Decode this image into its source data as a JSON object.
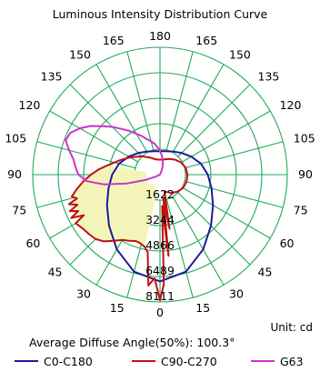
{
  "chart_data": {
    "type": "polar",
    "title": "Luminous Intensity Distribution Curve",
    "unit_label": "Unit: cd",
    "diffuse_angle_label": "Average Diffuse Angle(50%): 100.3°",
    "radial_ticks": [
      1622,
      3244,
      4866,
      6489,
      8111
    ],
    "radial_max": 8111,
    "angle_labels_left": [
      "180",
      "165",
      "150",
      "135",
      "120",
      "105",
      "90",
      "75",
      "60",
      "45",
      "30",
      "15",
      "0"
    ],
    "angle_labels_right": [
      "165",
      "150",
      "135",
      "120",
      "105",
      "90",
      "75",
      "60",
      "45",
      "30",
      "15"
    ],
    "grid": true,
    "legend_position": "bottom",
    "series": [
      {
        "name": "C0-C180",
        "color": "#1a1a9c",
        "points": [
          [
            0,
            6800
          ],
          [
            15,
            6400
          ],
          [
            30,
            5500
          ],
          [
            45,
            4600
          ],
          [
            60,
            3900
          ],
          [
            75,
            3400
          ],
          [
            90,
            3050
          ],
          [
            105,
            2700
          ],
          [
            120,
            2300
          ],
          [
            135,
            1950
          ],
          [
            150,
            1700
          ],
          [
            165,
            1550
          ],
          [
            180,
            1500
          ],
          [
            195,
            1550
          ],
          [
            210,
            1700
          ],
          [
            225,
            1950
          ],
          [
            240,
            2300
          ],
          [
            255,
            2700
          ],
          [
            270,
            3050
          ],
          [
            285,
            3400
          ],
          [
            300,
            3900
          ],
          [
            315,
            4600
          ],
          [
            330,
            5500
          ],
          [
            345,
            6400
          ]
        ]
      },
      {
        "name": "C90-C270",
        "color": "#c01010",
        "points": [
          [
            0,
            8000
          ],
          [
            3,
            6600
          ],
          [
            6,
            7100
          ],
          [
            9,
            5000
          ],
          [
            12,
            4700
          ],
          [
            16,
            4550
          ],
          [
            20,
            4500
          ],
          [
            25,
            4650
          ],
          [
            30,
            4800
          ],
          [
            35,
            5150
          ],
          [
            40,
            5550
          ],
          [
            45,
            5800
          ],
          [
            50,
            5900
          ],
          [
            55,
            6000
          ],
          [
            60,
            6200
          ],
          [
            62,
            5500
          ],
          [
            64,
            6300
          ],
          [
            66,
            5700
          ],
          [
            68,
            6200
          ],
          [
            70,
            5600
          ],
          [
            72,
            6100
          ],
          [
            74,
            5500
          ],
          [
            76,
            5800
          ],
          [
            80,
            5400
          ],
          [
            85,
            4900
          ],
          [
            90,
            4400
          ],
          [
            95,
            3900
          ],
          [
            100,
            3400
          ],
          [
            110,
            2700
          ],
          [
            120,
            2200
          ],
          [
            135,
            1650
          ],
          [
            150,
            1250
          ],
          [
            165,
            1000
          ],
          [
            180,
            950
          ],
          [
            195,
            1000
          ],
          [
            210,
            1150
          ],
          [
            225,
            1350
          ],
          [
            240,
            1550
          ],
          [
            255,
            1700
          ],
          [
            270,
            1750
          ],
          [
            285,
            1750
          ],
          [
            300,
            1700
          ],
          [
            315,
            1550
          ],
          [
            330,
            1350
          ],
          [
            345,
            1100
          ],
          [
            350,
            3500
          ],
          [
            352,
            1500
          ],
          [
            354,
            5200
          ],
          [
            356,
            2000
          ],
          [
            358,
            7000
          ]
        ]
      },
      {
        "name": "G63",
        "color": "#cc33cc",
        "points": [
          [
            0,
            0
          ],
          [
            20,
            0
          ],
          [
            40,
            0
          ],
          [
            55,
            0
          ],
          [
            60,
            0
          ],
          [
            65,
            300
          ],
          [
            70,
            1000
          ],
          [
            75,
            2200
          ],
          [
            80,
            3600
          ],
          [
            85,
            4700
          ],
          [
            90,
            5200
          ],
          [
            95,
            5400
          ],
          [
            100,
            5600
          ],
          [
            105,
            6000
          ],
          [
            110,
            6400
          ],
          [
            115,
            6300
          ],
          [
            120,
            5900
          ],
          [
            125,
            5400
          ],
          [
            130,
            4800
          ],
          [
            135,
            4300
          ],
          [
            140,
            3800
          ],
          [
            145,
            3400
          ],
          [
            150,
            3000
          ],
          [
            155,
            2700
          ],
          [
            160,
            2400
          ],
          [
            165,
            2200
          ],
          [
            170,
            2000
          ],
          [
            175,
            1750
          ],
          [
            180,
            1500
          ],
          [
            185,
            1250
          ],
          [
            190,
            1000
          ],
          [
            195,
            700
          ],
          [
            200,
            400
          ],
          [
            205,
            100
          ],
          [
            210,
            0
          ],
          [
            230,
            0
          ],
          [
            260,
            0
          ],
          [
            300,
            0
          ],
          [
            340,
            0
          ],
          [
            360,
            0
          ]
        ]
      }
    ],
    "fill_color": "#f3f5b8"
  },
  "legend": {
    "items": [
      {
        "label": "C0-C180",
        "color": "#1a1a9c"
      },
      {
        "label": "C90-C270",
        "color": "#c01010"
      },
      {
        "label": "G63",
        "color": "#cc33cc"
      }
    ]
  }
}
